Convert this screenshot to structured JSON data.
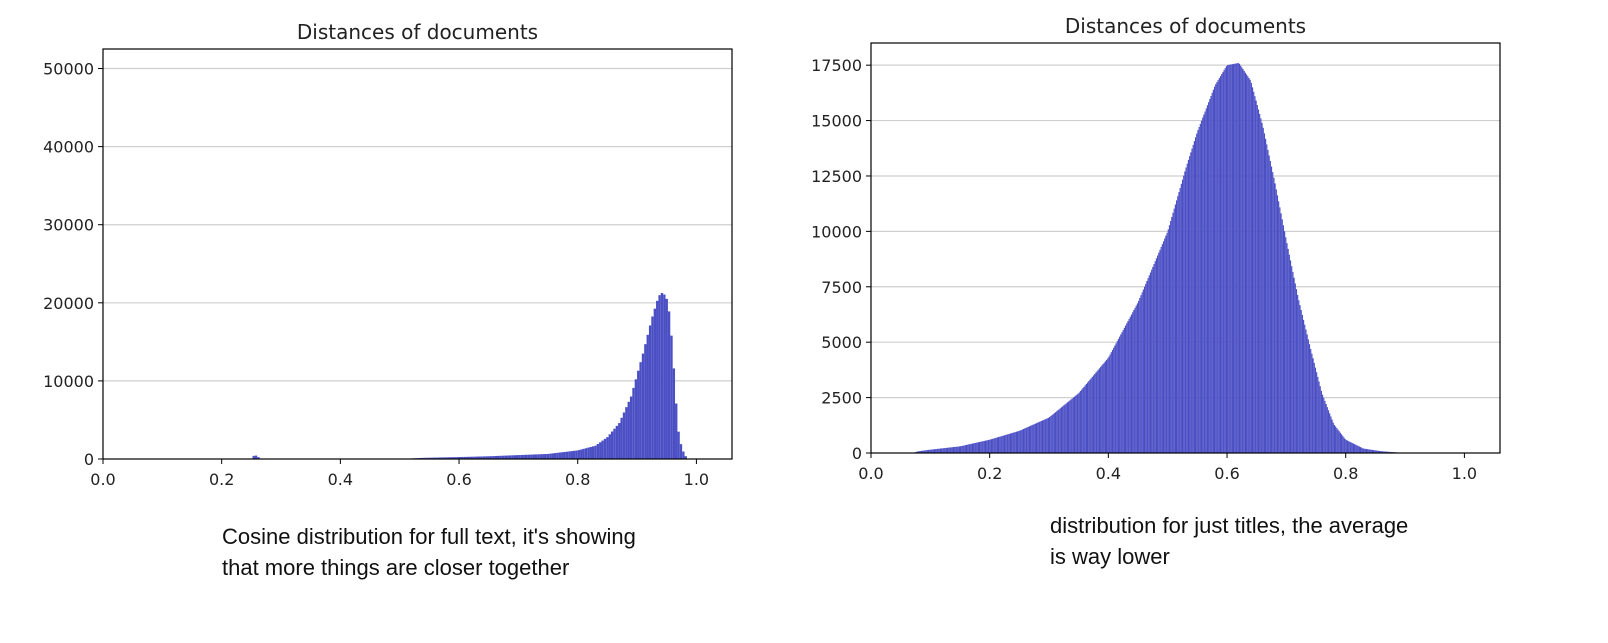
{
  "chart_data": [
    {
      "type": "bar",
      "title": "Distances of documents",
      "xlabel": "",
      "ylabel": "",
      "xlim": [
        0.0,
        1.06
      ],
      "ylim": [
        0,
        52500
      ],
      "xticks": [
        0.0,
        0.2,
        0.4,
        0.6,
        0.8,
        1.0
      ],
      "xtick_labels": [
        "0.0",
        "0.2",
        "0.4",
        "0.6",
        "0.8",
        "1.0"
      ],
      "yticks": [
        0,
        10000,
        20000,
        30000,
        40000,
        50000
      ],
      "ytick_labels": [
        "0",
        "10000",
        "20000",
        "30000",
        "40000",
        "50000"
      ],
      "grid": "horizontal",
      "color": "#4b4fc4",
      "bin_width": 0.004,
      "profile": [
        [
          0.0,
          0
        ],
        [
          0.2,
          0
        ],
        [
          0.25,
          0
        ],
        [
          0.255,
          500
        ],
        [
          0.26,
          400
        ],
        [
          0.265,
          0
        ],
        [
          0.5,
          0
        ],
        [
          0.54,
          150
        ],
        [
          0.6,
          250
        ],
        [
          0.65,
          350
        ],
        [
          0.7,
          500
        ],
        [
          0.75,
          650
        ],
        [
          0.8,
          1100
        ],
        [
          0.83,
          1700
        ],
        [
          0.85,
          2800
        ],
        [
          0.87,
          4600
        ],
        [
          0.89,
          8000
        ],
        [
          0.91,
          13500
        ],
        [
          0.925,
          18000
        ],
        [
          0.935,
          20500
        ],
        [
          0.94,
          21300
        ],
        [
          0.945,
          21200
        ],
        [
          0.95,
          20500
        ],
        [
          0.955,
          18500
        ],
        [
          0.96,
          14000
        ],
        [
          0.965,
          8000
        ],
        [
          0.97,
          3500
        ],
        [
          0.975,
          1500
        ],
        [
          0.98,
          600
        ],
        [
          0.985,
          0
        ],
        [
          1.06,
          0
        ]
      ]
    },
    {
      "type": "bar",
      "title": "Distances of documents",
      "xlabel": "",
      "ylabel": "",
      "xlim": [
        0.0,
        1.06
      ],
      "ylim": [
        0,
        18500
      ],
      "xticks": [
        0.0,
        0.2,
        0.4,
        0.6,
        0.8,
        1.0
      ],
      "xtick_labels": [
        "0.0",
        "0.2",
        "0.4",
        "0.6",
        "0.8",
        "1.0"
      ],
      "yticks": [
        0,
        2500,
        5000,
        7500,
        10000,
        12500,
        15000,
        17500
      ],
      "ytick_labels": [
        "0",
        "2500",
        "5000",
        "7500",
        "10000",
        "12500",
        "15000",
        "17500"
      ],
      "grid": "horizontal",
      "color": "#4b4fc4",
      "bin_width": 0.002,
      "profile": [
        [
          0.0,
          0
        ],
        [
          0.07,
          0
        ],
        [
          0.08,
          80
        ],
        [
          0.1,
          150
        ],
        [
          0.15,
          300
        ],
        [
          0.2,
          600
        ],
        [
          0.25,
          1000
        ],
        [
          0.3,
          1600
        ],
        [
          0.35,
          2700
        ],
        [
          0.4,
          4300
        ],
        [
          0.45,
          6800
        ],
        [
          0.5,
          10000
        ],
        [
          0.53,
          12800
        ],
        [
          0.55,
          14500
        ],
        [
          0.58,
          16600
        ],
        [
          0.6,
          17500
        ],
        [
          0.62,
          17600
        ],
        [
          0.64,
          16800
        ],
        [
          0.66,
          14800
        ],
        [
          0.68,
          12300
        ],
        [
          0.7,
          9600
        ],
        [
          0.72,
          7000
        ],
        [
          0.74,
          4800
        ],
        [
          0.76,
          2700
        ],
        [
          0.78,
          1300
        ],
        [
          0.8,
          600
        ],
        [
          0.83,
          200
        ],
        [
          0.86,
          80
        ],
        [
          0.89,
          20
        ],
        [
          0.9,
          0
        ],
        [
          1.06,
          0
        ]
      ]
    }
  ],
  "captions": {
    "left": "Cosine distribution for full text, it's showing that more things are closer together",
    "right": "distribution for just titles, the average is way lower"
  }
}
